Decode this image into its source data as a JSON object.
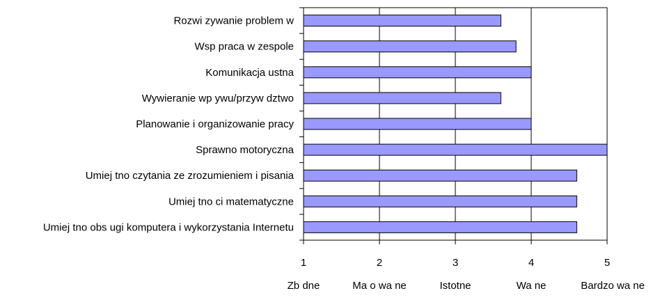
{
  "chart_data": {
    "type": "bar",
    "orientation": "horizontal",
    "title": "",
    "xlabel": "",
    "ylabel": "",
    "categories": [
      "Rozwi zywanie problem w",
      "Wsp praca w zespole",
      "Komunikacja ustna",
      "Wywieranie wp ywu/przyw dztwo",
      "Planowanie i organizowanie pracy",
      "Sprawno motoryczna",
      "Umiej tno czytania ze zrozumieniem i pisania",
      "Umiej tno ci matematyczne",
      "Umiej tno obs ugi komputera i wykorzystania Internetu"
    ],
    "values": [
      3.6,
      3.8,
      4.0,
      3.6,
      4.0,
      5.0,
      4.6,
      4.6,
      4.6
    ],
    "xlim": [
      1,
      5
    ],
    "x_ticks": [
      "1",
      "2",
      "3",
      "4",
      "5"
    ],
    "x_tick_descriptions": [
      "Zb dne",
      "Ma o wa ne",
      "Istotne",
      "Wa ne",
      "Bardzo wa ne"
    ],
    "grid": "vertical",
    "bar_color": "#9999ff",
    "bar_edge_color": "#000000"
  }
}
